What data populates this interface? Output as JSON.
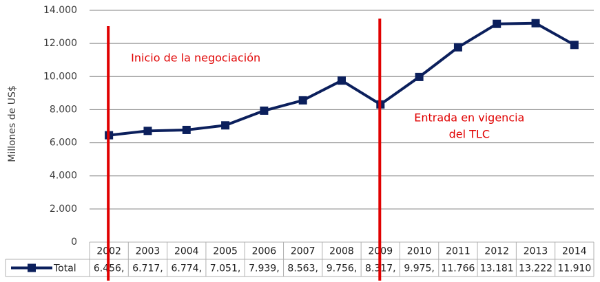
{
  "chart_data": {
    "type": "line",
    "y_label": "Millones de US$",
    "categories": [
      "2002",
      "2003",
      "2004",
      "2005",
      "2006",
      "2007",
      "2008",
      "2009",
      "2010",
      "2011",
      "2012",
      "2013",
      "2014"
    ],
    "series": [
      {
        "name": "Total",
        "color": "#0b1f5c",
        "values": [
          6456,
          6717,
          6774,
          7051,
          7939,
          8563,
          9756,
          8317,
          9975,
          11766,
          13181,
          13222,
          11910
        ],
        "value_labels": [
          "6.456,",
          "6.717,",
          "6.774,",
          "7.051,",
          "7.939,",
          "8.563,",
          "9.756,",
          "8.317,",
          "9.975,",
          "11.766",
          "13.181",
          "13.222",
          "11.910"
        ]
      }
    ],
    "ylim": [
      0,
      14000
    ],
    "yticks": [
      0,
      {
        "value": 2000,
        "label": "2.000"
      },
      {
        "value": 4000,
        "label": "4.000"
      },
      {
        "value": 6000,
        "label": "6.000"
      },
      {
        "value": 8000,
        "label": "8.000"
      },
      {
        "value": 10000,
        "label": "10.000"
      },
      {
        "value": 12000,
        "label": "12.000"
      },
      {
        "value": 14000,
        "label": "14.000"
      }
    ],
    "grid": true,
    "annotations": [
      {
        "x": "2002",
        "text": [
          "Inicio de la negociación"
        ]
      },
      {
        "x": "2009",
        "text": [
          "Entrada en vigencia",
          "del TLC"
        ]
      }
    ]
  }
}
